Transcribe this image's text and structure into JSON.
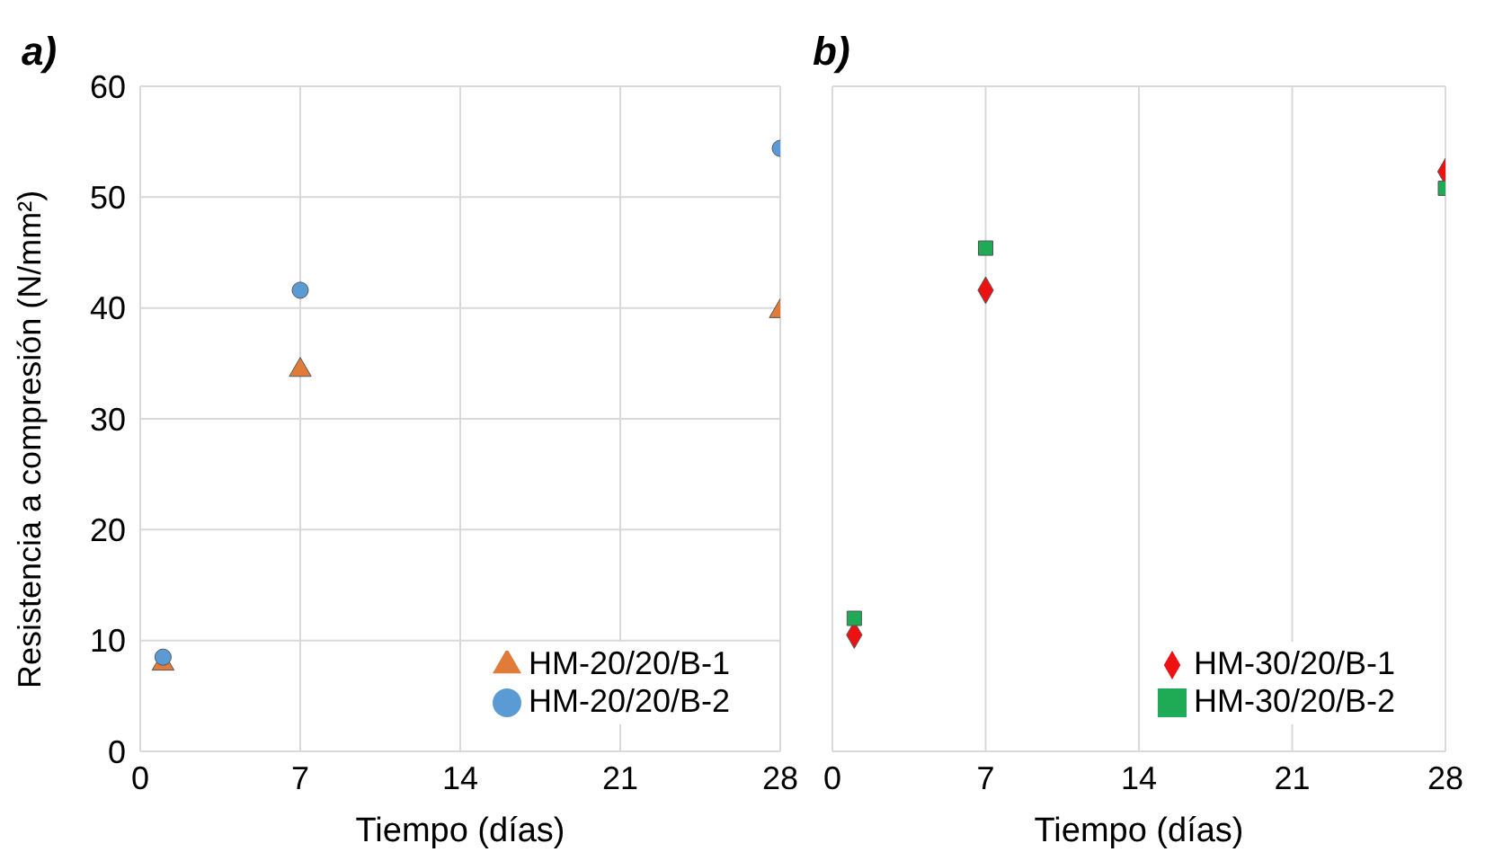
{
  "chart_data": [
    {
      "type": "scatter",
      "title": "a)",
      "xlabel": "Tiempo (días)",
      "ylabel": "Resistencia a compresión  (N/mm²)",
      "xlim": [
        0,
        28
      ],
      "xticks": [
        0,
        7,
        14,
        21,
        28
      ],
      "ylim": [
        0,
        60
      ],
      "yticks": [
        0,
        10,
        20,
        30,
        40,
        50,
        60
      ],
      "grid": true,
      "legend": "bottom right",
      "series": [
        {
          "name": "HM-20/20/B-1",
          "color": "#e07b39",
          "marker": "triangle",
          "x": [
            1,
            7,
            28
          ],
          "values": [
            7.9,
            34.4,
            39.7
          ]
        },
        {
          "name": "HM-20/20/B-2",
          "color": "#5b9bd5",
          "marker": "circle",
          "x": [
            1,
            7,
            28
          ],
          "values": [
            8.5,
            41.6,
            54.4
          ]
        }
      ]
    },
    {
      "type": "scatter",
      "title": "b)",
      "xlabel": "Tiempo (días)",
      "xlim": [
        0,
        28
      ],
      "xticks": [
        0,
        7,
        14,
        21,
        28
      ],
      "ylim": [
        0,
        60
      ],
      "yticks": [
        0,
        10,
        20,
        30,
        40,
        50,
        60
      ],
      "tick_labels": "x",
      "grid": true,
      "legend": "bottom right",
      "series": [
        {
          "name": "HM-30/20/B-1",
          "color": "#ee1111",
          "marker": "diamond",
          "x": [
            1,
            7,
            28
          ],
          "values": [
            10.5,
            41.6,
            52.3
          ]
        },
        {
          "name": "HM-30/20/B-2",
          "color": "#1faa55",
          "marker": "square",
          "x": [
            1,
            7,
            28
          ],
          "values": [
            12,
            45.4,
            50.8
          ]
        }
      ]
    }
  ]
}
